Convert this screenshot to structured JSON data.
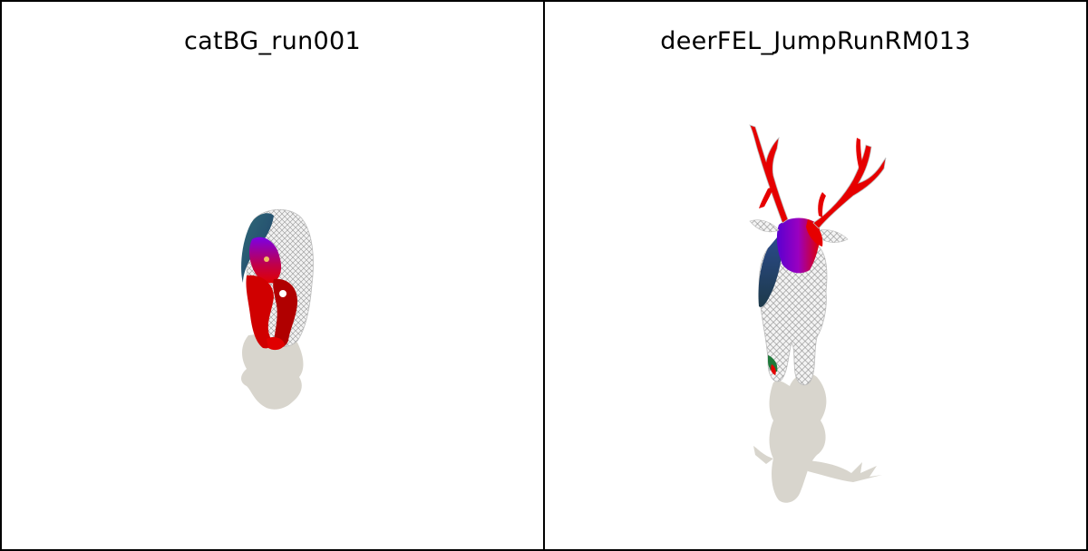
{
  "panels": [
    {
      "title": "catBG_run001"
    },
    {
      "title": "deerFEL_JumpRunRM013"
    }
  ],
  "colors": {
    "shadow": "#d8d5cd",
    "mesh": "#e6e6e6",
    "highlight_red": "#e60000",
    "highlight_purple": "#7a00e0",
    "highlight_teal": "#2f5f6f",
    "divider": "#000000"
  }
}
